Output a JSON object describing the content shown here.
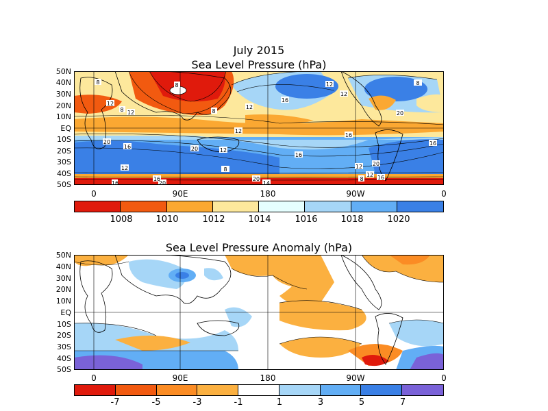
{
  "figure": {
    "title_line1": "July 2015",
    "panel1_title": "Sea Level Pressure (hPa)",
    "panel2_title": "Sea Level Pressure Anomaly (hPa)"
  },
  "axes": {
    "lat_labels": [
      "50N",
      "40N",
      "30N",
      "20N",
      "10N",
      "EQ",
      "10S",
      "20S",
      "30S",
      "40S",
      "50S"
    ],
    "lon_labels": [
      "0",
      "90E",
      "180",
      "90W",
      "0"
    ]
  },
  "panel1": {
    "colorbar": {
      "colors": [
        "#e01a0c",
        "#f25a10",
        "#fba832",
        "#fde89c",
        "#e6ffff",
        "#a6d6f7",
        "#62aef5",
        "#3a80e6"
      ],
      "labels": [
        "1008",
        "1010",
        "1012",
        "1014",
        "1016",
        "1018",
        "1020"
      ]
    },
    "contour_labels": [
      "8",
      "12",
      "8",
      "12",
      "8",
      "8",
      "12",
      "12",
      "16",
      "12",
      "12",
      "16",
      "20",
      "16",
      "20",
      "12",
      "16",
      "12",
      "20",
      "16",
      "20",
      "8",
      "16",
      "12",
      "8",
      "20",
      "14",
      "16",
      "20",
      "16",
      "8",
      "12"
    ]
  },
  "panel2": {
    "colorbar": {
      "colors": [
        "#e01a0c",
        "#f25a10",
        "#fb8c24",
        "#fbb040",
        "#ffffff",
        "#a6d6f7",
        "#62aef5",
        "#3a80e6",
        "#7a62d8"
      ],
      "labels": [
        "-7",
        "-5",
        "-3",
        "-1",
        "1",
        "3",
        "5",
        "7"
      ]
    }
  }
}
